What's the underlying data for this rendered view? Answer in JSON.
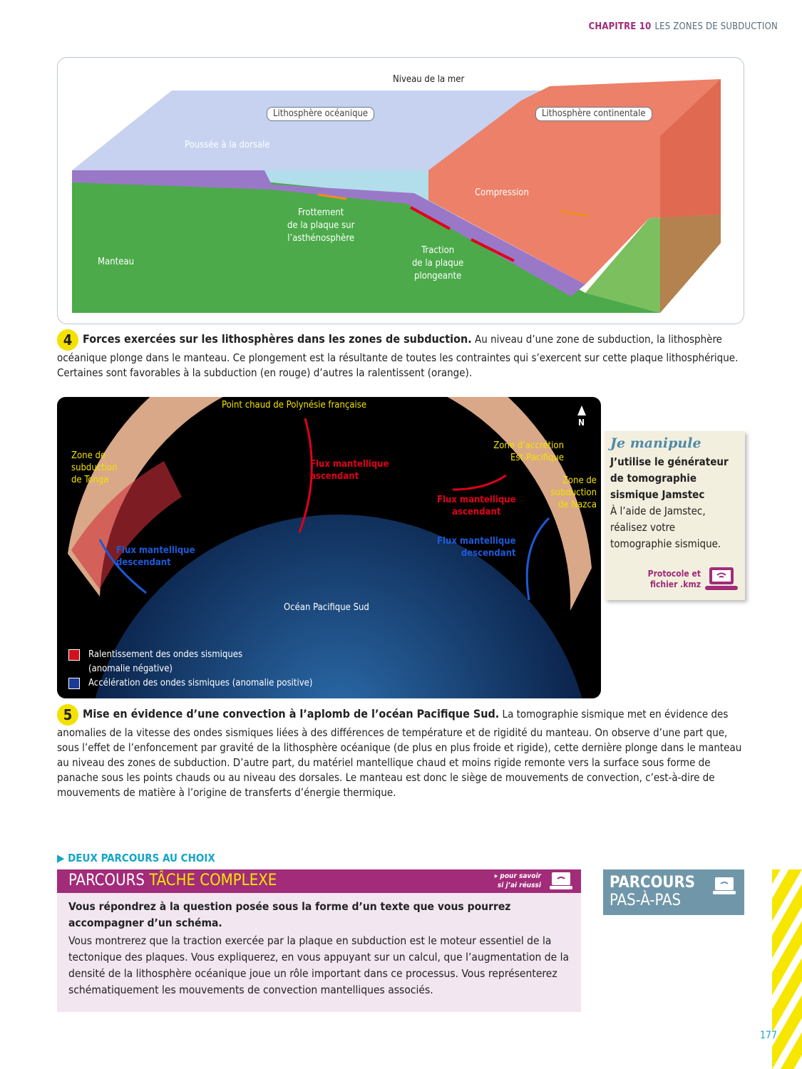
{
  "header": {
    "chapter": "CHAPITRE 10",
    "title": "LES ZONES DE SUBDUCTION"
  },
  "figure4": {
    "labels": {
      "sea_level": "Niveau de la mer",
      "oceanic": "Lithosphère océanique",
      "continental": "Lithosphère continentale",
      "ridge_push": "Poussée à la dorsale",
      "compression": "Compression",
      "friction": "Frottement\nde la plaque sur\nl’asthénosphère",
      "traction": "Traction\nde la plaque\nplongeante",
      "mantle": "Manteau"
    },
    "colors": {
      "ocean": "#b8c8ec",
      "mantle": "#4caa4a",
      "continent": "#ec8068",
      "slab": "#9a78c8",
      "favorable": "#e0001a",
      "resisting": "#f08c1e"
    },
    "caption_num": "4",
    "caption_title": "Forces exercées sur les lithosphères dans les zones de subduction.",
    "caption_text": " Au niveau d’une zone de subduction, la lithosphère océanique plonge dans le manteau. Ce plongement est la résultante de toutes les contraintes qui s’exercent sur cette plaque lithosphérique. Certaines sont favorables à la subduction (en rouge) d’autres la ralentissent (orange)."
  },
  "figure5": {
    "labels": {
      "hotspot": "Point chaud de Polynésie française",
      "north": "N",
      "tonga": "Zone de\nsubduction\nde Tonga",
      "accretion": "Zone d’accrétion\nEst-Pacifique",
      "nazca": "Zone de\nsubduction\nde Nazca",
      "up1": "Flux mantellique\nascendant",
      "up2": "Flux mantellique\nascendant",
      "down1": "Flux mantellique\ndescendant",
      "down2": "Flux mantellique\ndescendant",
      "ocean": "Océan Pacifique Sud"
    },
    "legend": [
      {
        "label": "Ralentissement des ondes sismiques\n(anomalie négative)",
        "color": "#d0101a"
      },
      {
        "label": "Accélération des ondes sismiques (anomalie positive)",
        "color": "#1a3a9a"
      }
    ],
    "caption_num": "5",
    "caption_title": "Mise en évidence d’une convection à l’aplomb de l’océan Pacifique Sud.",
    "caption_text": " La tomographie sismique met en évidence des anomalies de la vitesse des ondes sismiques liées à des différences de température et de rigidité du manteau. On observe d’une part que, sous l’effet de l’enfoncement par gravité de la lithosphère océanique (de plus en plus froide et rigide), cette dernière plonge dans le manteau au niveau des zones de subduction. D’autre part, du matériel mantellique chaud et moins rigide remonte vers la surface sous forme de panache sous les points chauds ou au niveau des dorsales. Le manteau est donc le siège de mouvements de convection, c’est-à-dire de mouvements de matière à l’origine de transferts d’énergie thermique."
  },
  "manipule": {
    "title": "Je manipule",
    "bold": "J’utilise le générateur de tomographie sismique Jamstec",
    "text": "À l’aide de Jamstec, réalisez votre tomographie sismique.",
    "link": "Protocole et\nfichier .kmz",
    "icon": "laptop-wifi-icon"
  },
  "parcours": {
    "section": "DEUX PARCOURS AU CHOIX",
    "complex_a": "PARCOURS",
    "complex_b": "TÂCHE COMPLEXE",
    "success_link": "▸ pour savoir\nsi j’ai réussi",
    "task_bold": "Vous répondrez à la question posée sous la forme d’un texte que vous pourrez accompagner d’un schéma.",
    "task_text": "Vous montrerez que la traction exercée par la plaque en subduction est le moteur essentiel de la tectonique des plaques. Vous expliquerez, en vous appuyant sur un calcul, que l’augmentation de la densité de la lithosphère océanique joue un rôle important dans ce processus. Vous représenterez schématiquement les mouvements de convection mantelliques associés.",
    "step_a": "PARCOURS",
    "step_b": "PAS-À-PAS"
  },
  "page_number": "177"
}
